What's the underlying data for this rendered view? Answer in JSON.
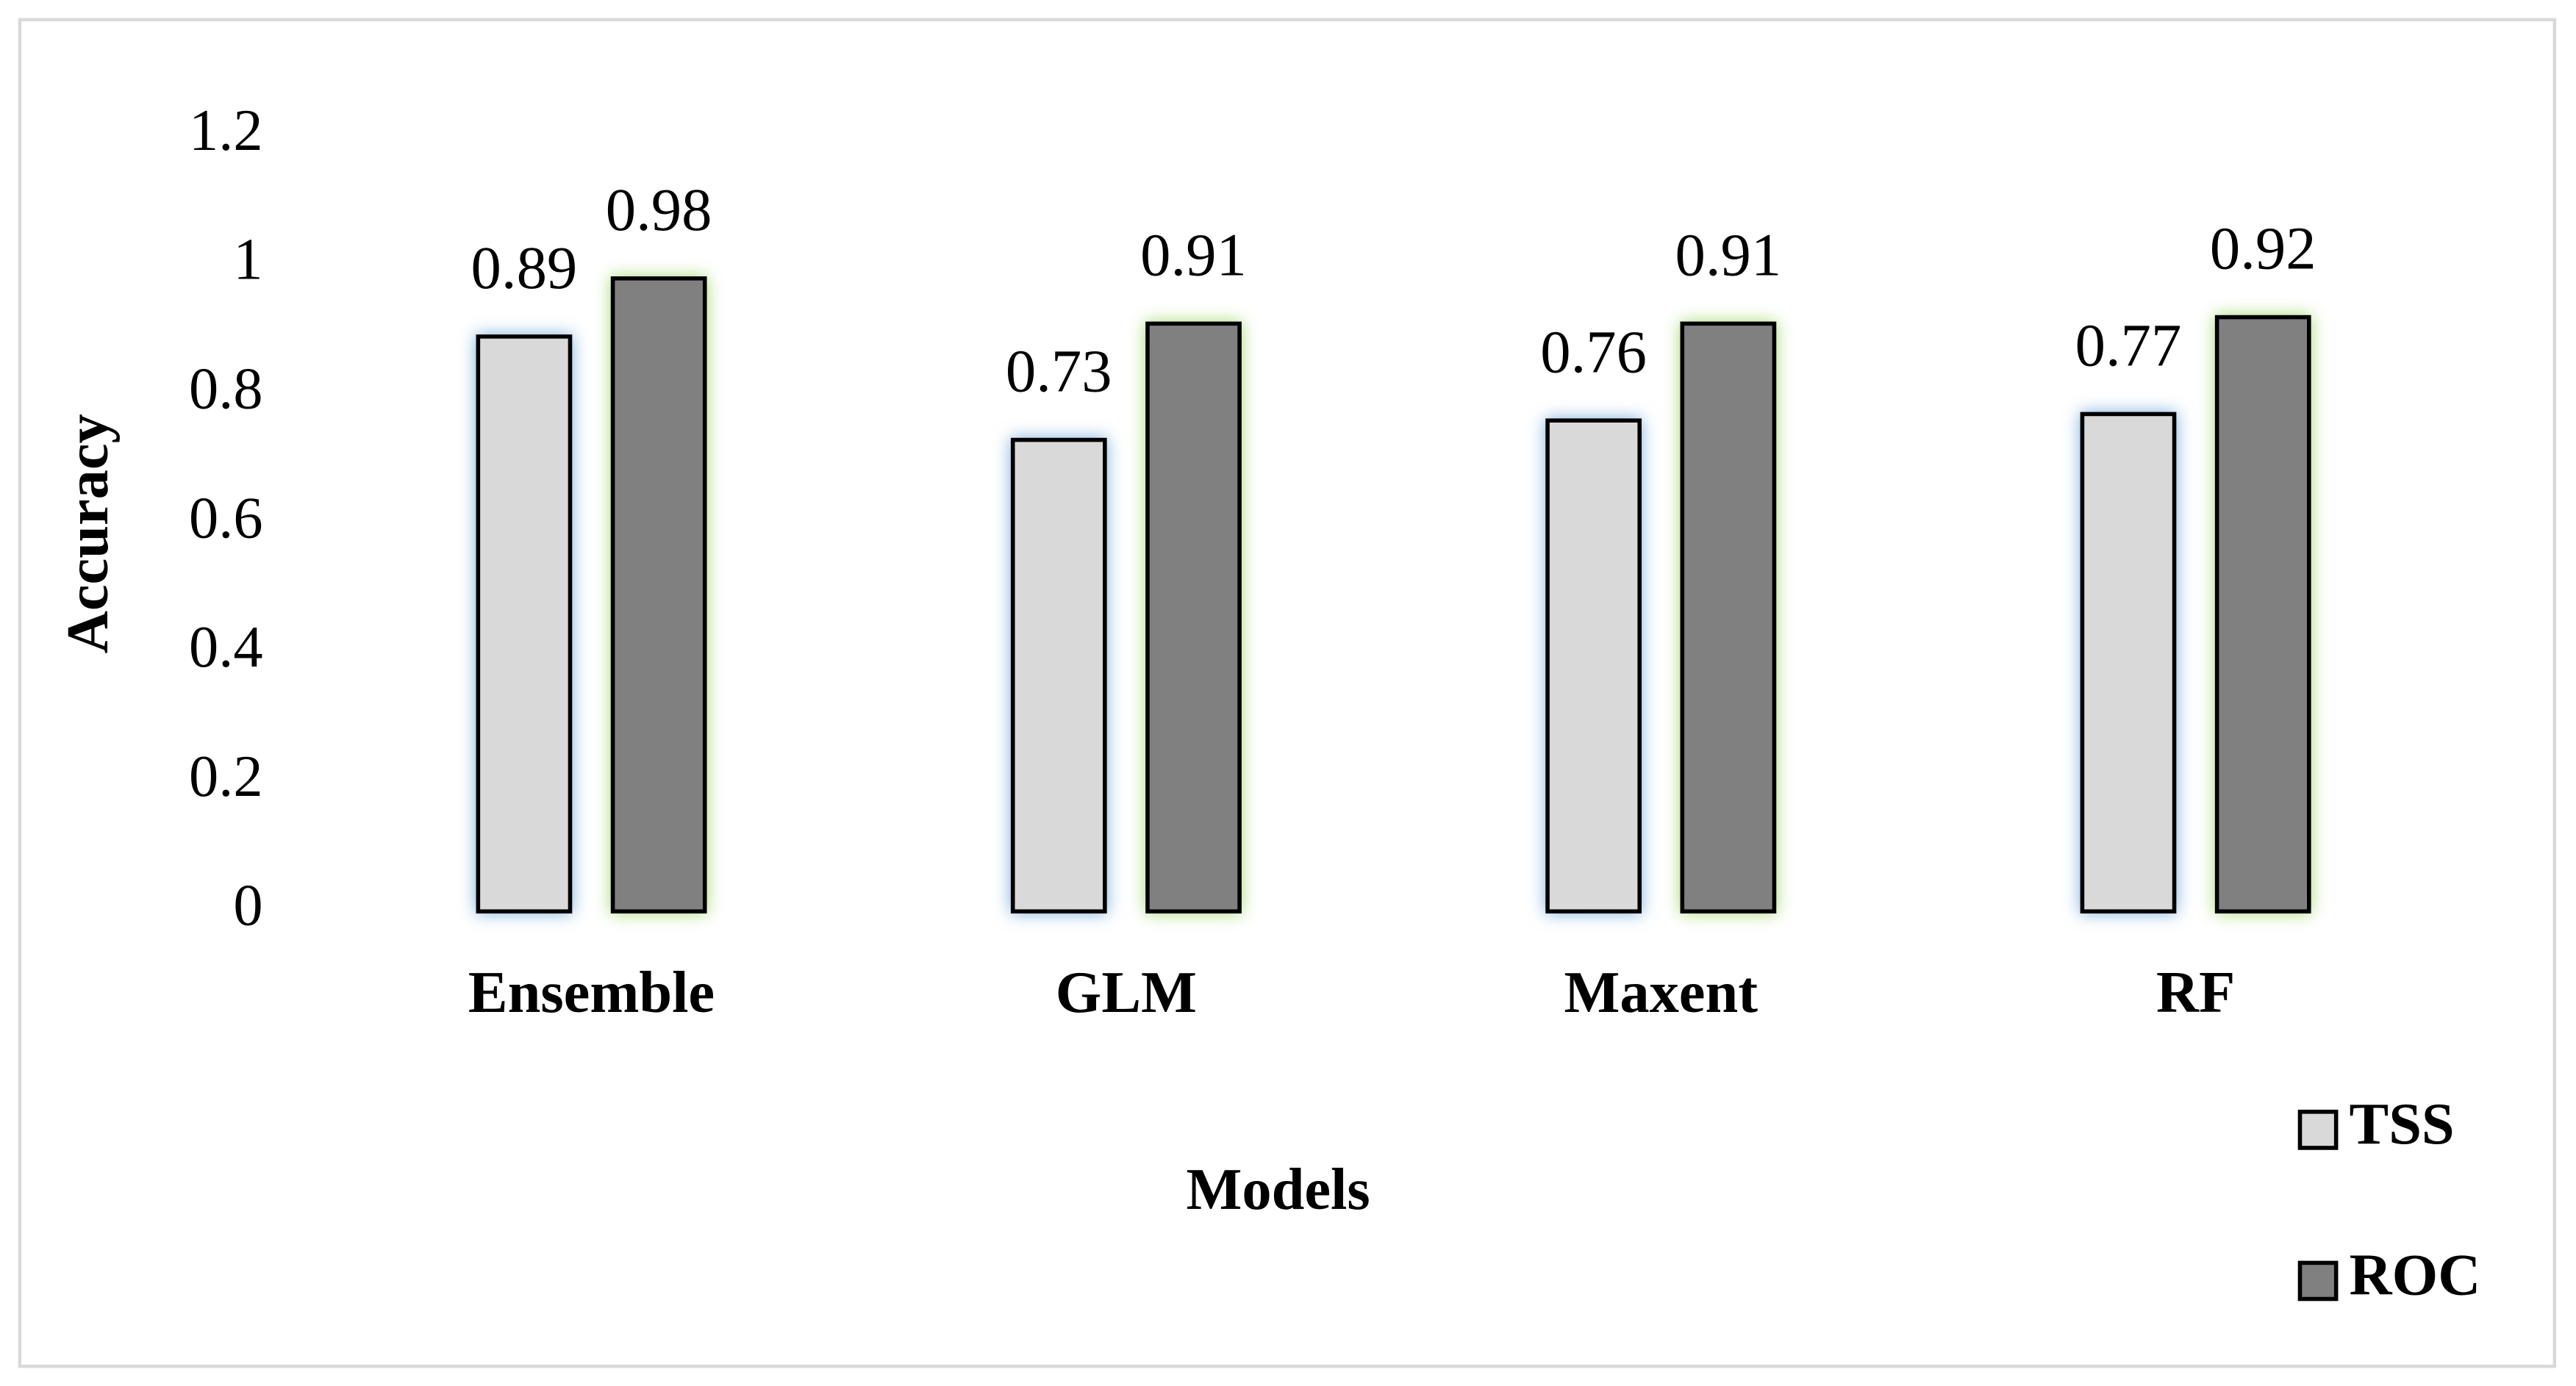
{
  "chart_data": {
    "type": "bar",
    "categories": [
      "Ensemble",
      "GLM",
      "Maxent",
      "RF"
    ],
    "series": [
      {
        "name": "TSS",
        "color": "#d9d9d9",
        "values": [
          0.89,
          0.73,
          0.76,
          0.77
        ]
      },
      {
        "name": "ROC",
        "color": "#808080",
        "values": [
          0.98,
          0.91,
          0.91,
          0.92
        ]
      }
    ],
    "x_label": "Models",
    "y_label": "Accuracy",
    "ylim": [
      0,
      1.2
    ],
    "yticks": [
      0,
      0.2,
      0.4,
      0.6,
      0.8,
      1,
      1.2
    ],
    "grid": false,
    "legend": "bottom-right"
  }
}
